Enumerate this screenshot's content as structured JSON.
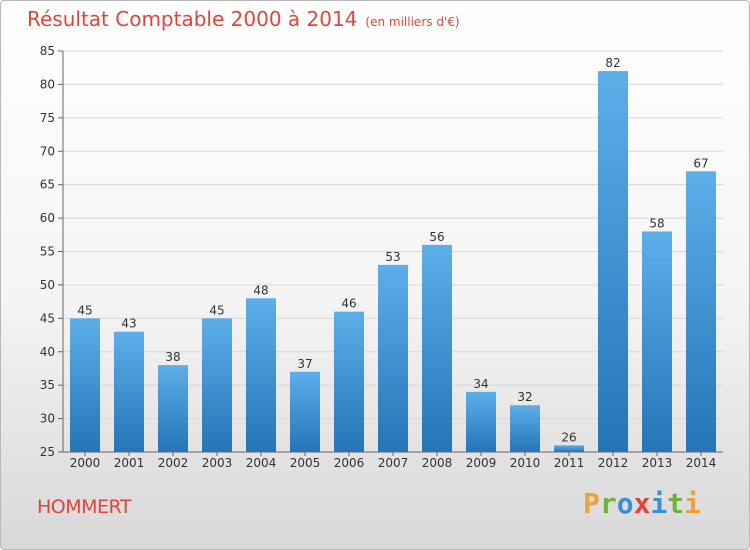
{
  "title": "Résultat Comptable 2000 à 2014",
  "subtitle": "(en milliers d'€)",
  "commune": "HOMMERT",
  "brand": {
    "text": "Proxiti",
    "letters": [
      {
        "ch": "P",
        "color": "#e8a33a"
      },
      {
        "ch": "r",
        "color": "#6bb33c"
      },
      {
        "ch": "o",
        "color": "#3a8fd6"
      },
      {
        "ch": "x",
        "color": "#e0453a"
      },
      {
        "ch": "i",
        "color": "#3a8fd6"
      },
      {
        "ch": "t",
        "color": "#6bb33c"
      },
      {
        "ch": "i",
        "color": "#e8a33a"
      }
    ]
  },
  "colors": {
    "title": "#e0453a",
    "bar_top": "#5eaeea",
    "bar_bottom": "#2574b8",
    "grid": "#d6d6d6",
    "text": "#333333"
  },
  "chart_data": {
    "type": "bar",
    "title": "Résultat Comptable 2000 à 2014",
    "categories": [
      "2000",
      "2001",
      "2002",
      "2003",
      "2004",
      "2005",
      "2006",
      "2007",
      "2008",
      "2009",
      "2010",
      "2011",
      "2012",
      "2013",
      "2014"
    ],
    "values": [
      45,
      43,
      38,
      45,
      48,
      37,
      46,
      53,
      56,
      34,
      32,
      26,
      82,
      58,
      67
    ],
    "ylim": [
      25,
      85
    ],
    "yticks": [
      25,
      30,
      35,
      40,
      45,
      50,
      55,
      60,
      65,
      70,
      75,
      80,
      85
    ],
    "grid": true,
    "data_labels": true
  }
}
